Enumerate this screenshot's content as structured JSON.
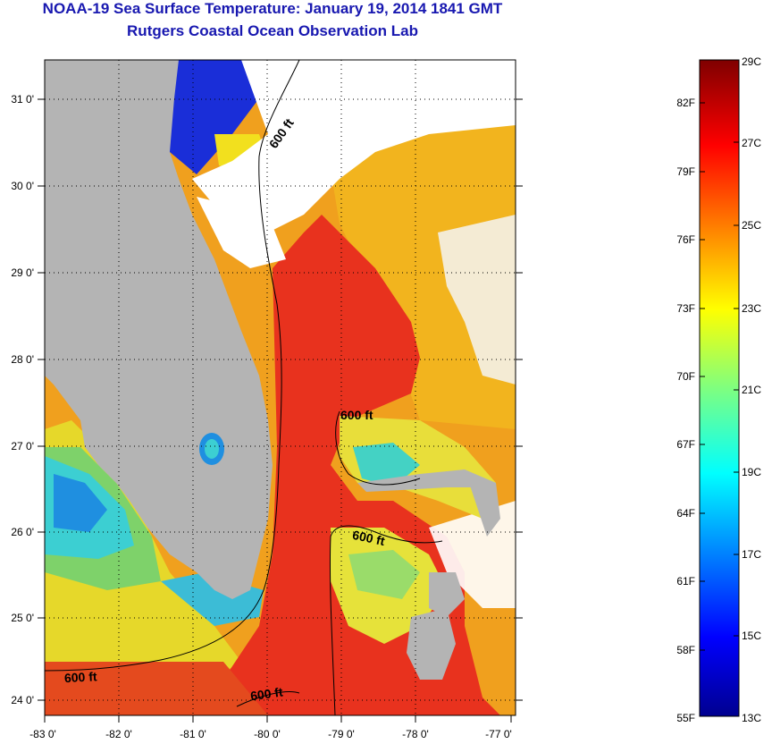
{
  "title": {
    "line1": "NOAA-19 Sea Surface Temperature:  January 19, 2014 1841 GMT",
    "line2": "Rutgers Coastal Ocean Observation Lab"
  },
  "map": {
    "lon_ticks": [
      "-83 0'",
      "-82 0'",
      "-81 0'",
      "-80 0'",
      "-79 0'",
      "-78 0'",
      "-77 0'"
    ],
    "lat_ticks": [
      "31 0'",
      "30 0'",
      "29 0'",
      "28 0'",
      "27 0'",
      "26 0'",
      "25 0'",
      "24 0'"
    ],
    "contour_labels": [
      "600 ft",
      "600 ft",
      "600 ft",
      "600 ft",
      "600 ft"
    ],
    "colors": {
      "land": "#b4b4b4",
      "cloud": "#ffffff",
      "gulf_stream": "#e8321e",
      "warm_orange": "#f08c1e",
      "yellow": "#f0d21e",
      "cyan": "#3cd2d2",
      "blue": "#1e3cdc"
    }
  },
  "colorbar": {
    "fahrenheit": [
      "82F",
      "79F",
      "76F",
      "73F",
      "70F",
      "67F",
      "64F",
      "61F",
      "58F",
      "55F"
    ],
    "celsius": [
      "29C",
      "27C",
      "25C",
      "23C",
      "21C",
      "19C",
      "17C",
      "15C",
      "13C"
    ]
  }
}
